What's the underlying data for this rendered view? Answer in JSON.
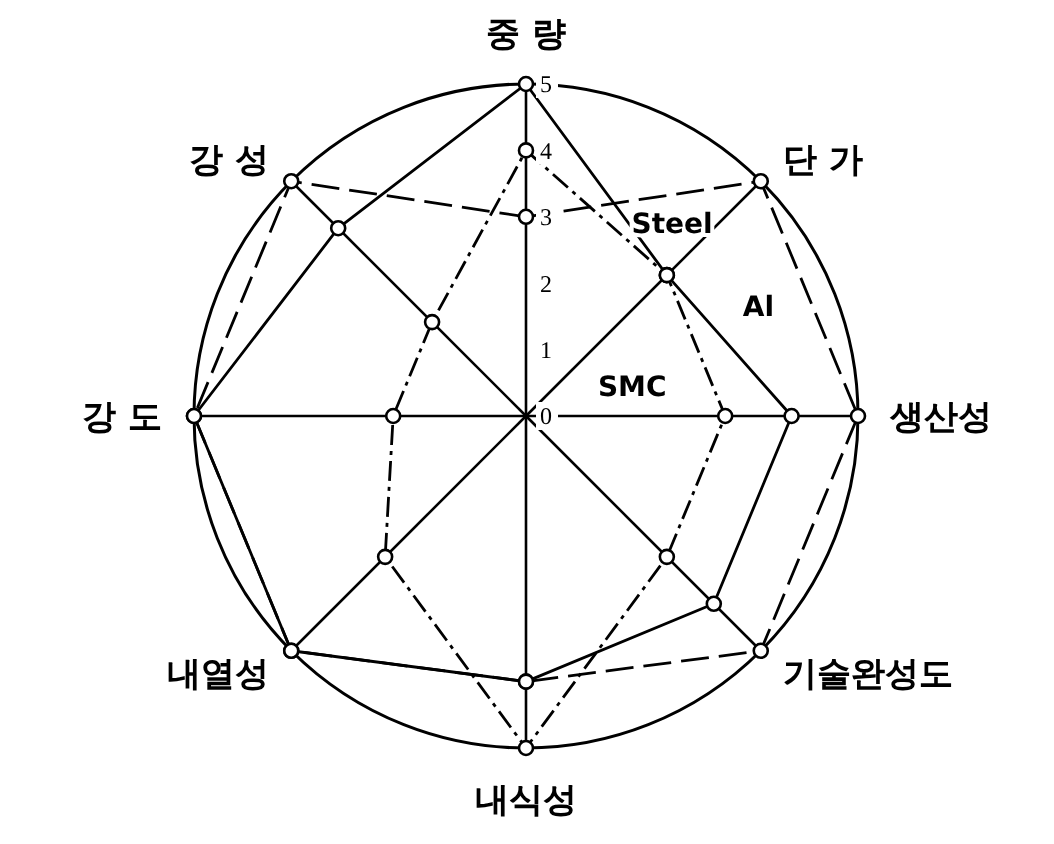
{
  "chart_data": {
    "type": "radar",
    "categories": [
      "중 량",
      "단 가",
      "생산성",
      "기술완성도",
      "내식성",
      "내열성",
      "강 도",
      "강 성"
    ],
    "ylim": [
      0,
      5
    ],
    "yticks": [
      0,
      1,
      2,
      3,
      4,
      5
    ],
    "marker": "circle",
    "series": [
      {
        "name": "Steel",
        "color": "#000000",
        "line_style": "dashed",
        "values": [
          3,
          5,
          5,
          5,
          4,
          5,
          5,
          5
        ]
      },
      {
        "name": "Al",
        "color": "#000000",
        "line_style": "solid",
        "values": [
          5,
          3,
          4,
          4,
          4,
          5,
          5,
          4
        ]
      },
      {
        "name": "SMC",
        "color": "#000000",
        "line_style": "dashdot",
        "values": [
          4,
          3,
          3,
          3,
          5,
          3,
          2,
          2
        ]
      }
    ]
  }
}
